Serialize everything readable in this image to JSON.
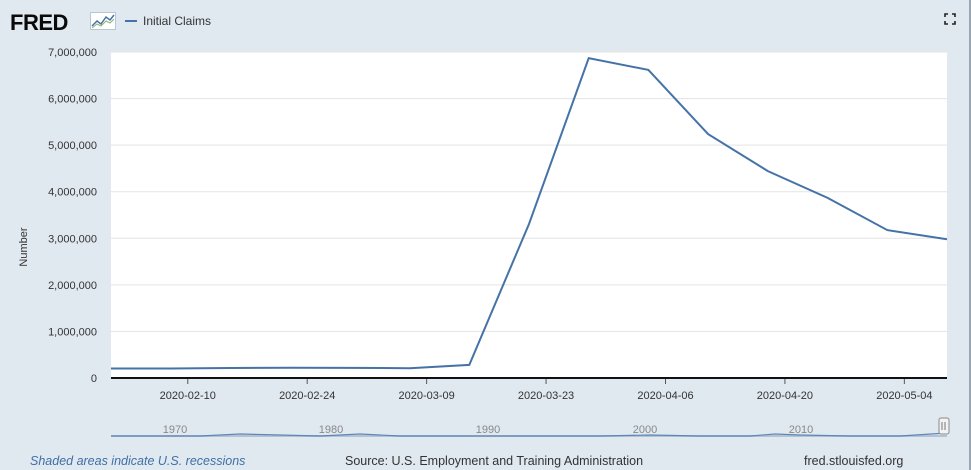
{
  "header": {
    "logo_text": "FRED",
    "legend_label": "Initial Claims",
    "fullscreen_icon": "fullscreen-icon"
  },
  "footer": {
    "recession_note": "Shaded areas indicate U.S. recessions",
    "source": "Source: U.S. Employment and Training Administration",
    "site": "fred.stlouisfed.org"
  },
  "chart_data": {
    "type": "line",
    "title": "",
    "ylabel": "Number",
    "xlabel": "",
    "ylim": [
      0,
      7000000
    ],
    "yticks": [
      0,
      1000000,
      2000000,
      3000000,
      4000000,
      5000000,
      6000000,
      7000000
    ],
    "ytick_labels": [
      "0",
      "1,000,000",
      "2,000,000",
      "3,000,000",
      "4,000,000",
      "5,000,000",
      "6,000,000",
      "7,000,000"
    ],
    "xlim": [
      "2020-02-01",
      "2020-05-09"
    ],
    "xtick_labels": [
      "2020-02-10",
      "2020-02-24",
      "2020-03-09",
      "2020-03-23",
      "2020-04-06",
      "2020-04-20",
      "2020-05-04"
    ],
    "grid": true,
    "legend": "top-left",
    "color": "#4572a7",
    "series": [
      {
        "name": "Initial Claims",
        "x": [
          "2020-02-01",
          "2020-02-08",
          "2020-02-15",
          "2020-02-22",
          "2020-02-29",
          "2020-03-07",
          "2020-03-14",
          "2020-03-21",
          "2020-03-28",
          "2020-04-04",
          "2020-04-11",
          "2020-04-18",
          "2020-04-25",
          "2020-05-02",
          "2020-05-09"
        ],
        "values": [
          203000,
          205000,
          214000,
          220000,
          217000,
          211000,
          282000,
          3307000,
          6867000,
          6615000,
          5237000,
          4442000,
          3867000,
          3176000,
          2981000
        ]
      }
    ],
    "navigator": {
      "labels": [
        "1970",
        "1980",
        "1990",
        "2000",
        "2010"
      ]
    }
  }
}
